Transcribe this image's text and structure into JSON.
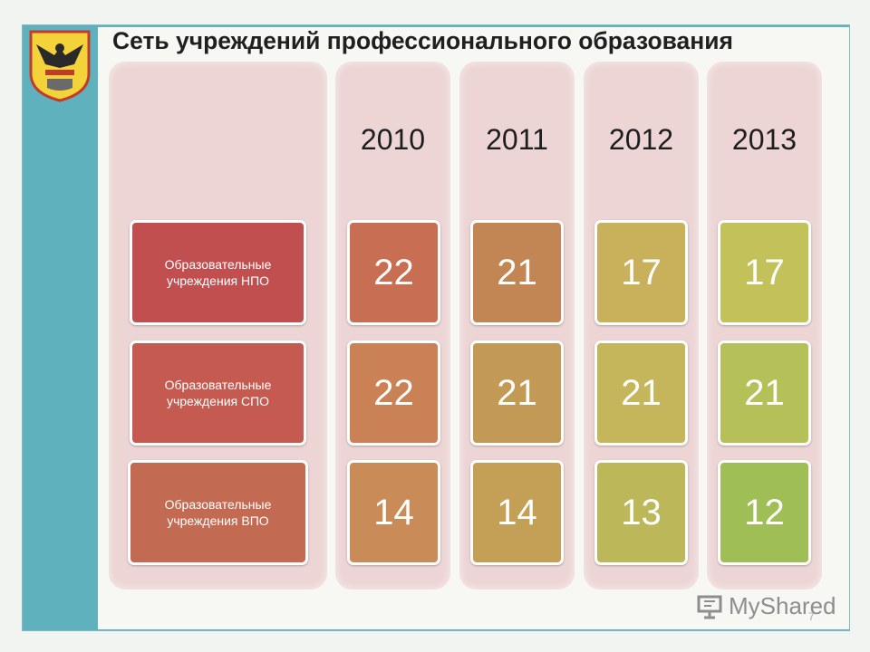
{
  "slide": {
    "title": "Сеть учреждений профессионального образования",
    "row_labels": [
      "Образовательные учреждения НПО",
      "Образовательные учреждения СПО",
      "Образовательные учреждения ВПО"
    ],
    "years": [
      "2010",
      "2011",
      "2012",
      "2013"
    ],
    "values": [
      [
        "22",
        "21",
        "17",
        "17"
      ],
      [
        "22",
        "21",
        "21",
        "21"
      ],
      [
        "14",
        "14",
        "13",
        "12"
      ]
    ],
    "page_number": "7"
  },
  "watermark": {
    "text": "MyShared"
  },
  "colors": {
    "teal_panel": "#5fb2bd",
    "column_background": "#ecd5d4",
    "label_tiles": [
      "#c24f4f",
      "#c55b50",
      "#c26a52"
    ],
    "tile_gradient_2010": [
      "#c86f53",
      "#c98155",
      "#c98b57"
    ],
    "tile_gradient_2011": [
      "#c28655",
      "#c39a55",
      "#c3a056"
    ],
    "tile_gradient_2012": [
      "#c9b05b",
      "#c5b65b",
      "#bcb85a"
    ],
    "tile_gradient_2013": [
      "#c2c15a",
      "#b5c059",
      "#9fbe56"
    ]
  },
  "icons": {
    "emblem": "coat-of-arms-eagle-icon",
    "watermark": "presentation-icon"
  }
}
